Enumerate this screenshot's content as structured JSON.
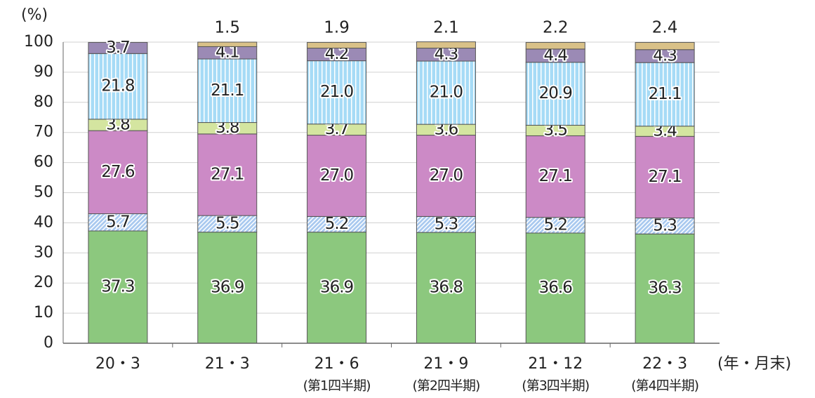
{
  "chart_data": {
    "type": "stacked_bar",
    "y_label": "(%)",
    "x_label": "(年・月末)",
    "categories": [
      "20・3",
      "21・3",
      "21・6",
      "21・9",
      "21・12",
      "22・3"
    ],
    "category_notes": [
      null,
      null,
      "(第1四半期)",
      "(第2四半期)",
      "(第3四半期)",
      "(第4四半期)"
    ],
    "ylim": [
      0,
      100
    ],
    "yticks": [
      0,
      10,
      20,
      30,
      40,
      50,
      60,
      70,
      80,
      90,
      100
    ],
    "grid": true,
    "series": [
      {
        "color": "#8cc87e",
        "values": [
          37.3,
          36.9,
          36.9,
          36.8,
          36.6,
          36.3
        ]
      },
      {
        "color": "#a9c9ef",
        "pattern": "hatch",
        "values": [
          5.7,
          5.5,
          5.2,
          5.3,
          5.2,
          5.3
        ]
      },
      {
        "color": "#cc8ac6",
        "values": [
          27.6,
          27.1,
          27.0,
          27.0,
          27.1,
          27.1
        ],
        "value_labels": [
          "27.6",
          "27.1",
          "27.0",
          "27.0",
          "27.1",
          "27.1"
        ]
      },
      {
        "color": "#d4e5a0",
        "values": [
          3.8,
          3.8,
          3.7,
          3.6,
          3.5,
          3.4
        ]
      },
      {
        "color": "#a6dbf6",
        "pattern": "stripes",
        "values": [
          21.8,
          21.1,
          21.0,
          21.0,
          20.9,
          21.1
        ],
        "value_labels": [
          "21.8",
          "21.1",
          "21.0",
          "21.0",
          "20.9",
          "21.1"
        ]
      },
      {
        "color": "#9b8ab5",
        "values": [
          3.7,
          4.1,
          4.2,
          4.3,
          4.4,
          4.3
        ]
      },
      {
        "color": "#d9c188",
        "label_position": "above",
        "values": [
          null,
          1.5,
          1.9,
          2.1,
          2.2,
          2.4
        ]
      }
    ]
  }
}
